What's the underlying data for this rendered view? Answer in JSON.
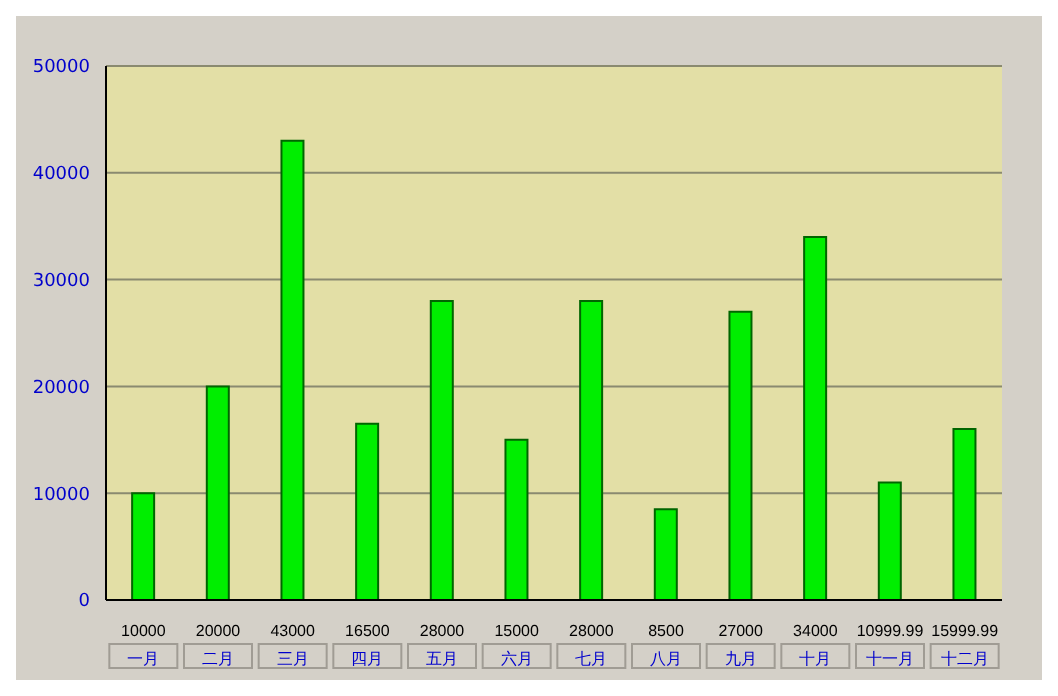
{
  "chart_data": {
    "type": "bar",
    "categories": [
      "一月",
      "二月",
      "三月",
      "四月",
      "五月",
      "六月",
      "七月",
      "八月",
      "九月",
      "十月",
      "十一月",
      "十二月"
    ],
    "values": [
      10000,
      20000,
      43000,
      16500,
      28000,
      15000,
      28000,
      8500,
      27000,
      34000,
      10999.99,
      15999.99
    ],
    "color": "#00ee00",
    "ylim": [
      0,
      50000
    ],
    "yticks": [
      0,
      10000,
      20000,
      30000,
      40000,
      50000
    ],
    "grid": "y",
    "data_labels": true
  }
}
